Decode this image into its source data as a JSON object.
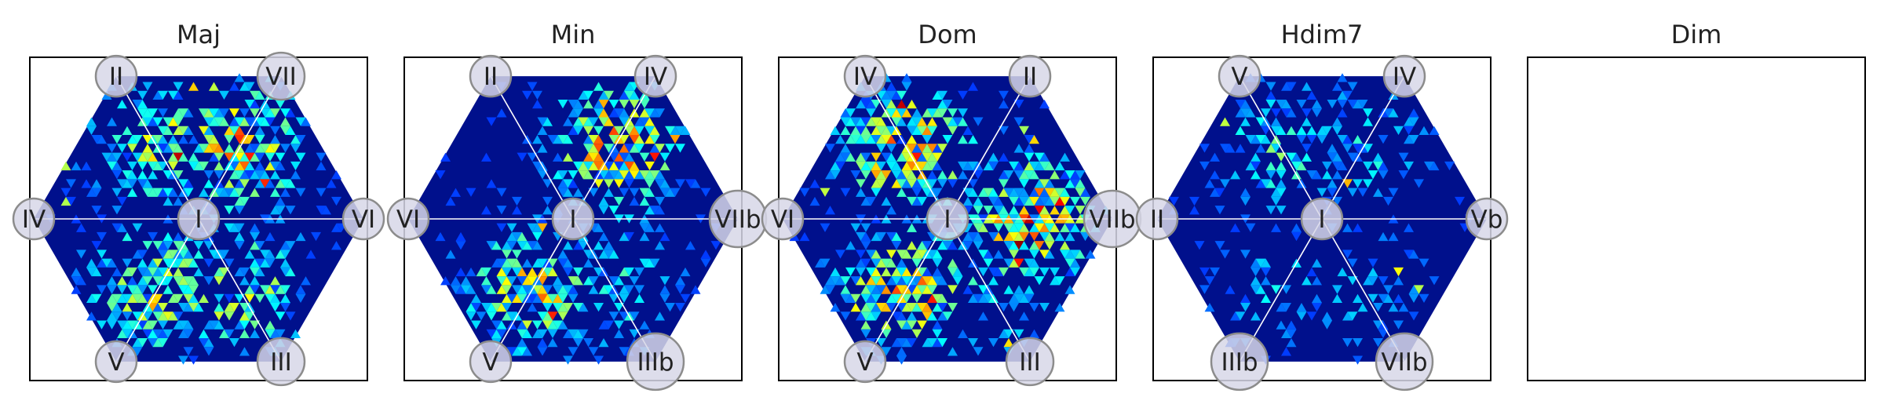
{
  "chart_data": [
    {
      "type": "heatmap",
      "title": "Maj",
      "vertex_labels": {
        "top_left": "II",
        "top_right": "VII",
        "left": "IV",
        "right": "VI",
        "bottom_left": "V",
        "bottom_right": "III"
      },
      "center_label": "I",
      "density_clusters": [
        {
          "sector": "upper-left",
          "density": 0.55
        },
        {
          "sector": "upper-right",
          "density": 0.75
        },
        {
          "sector": "lower-left",
          "density": 0.65
        },
        {
          "sector": "lower-right",
          "density": 0.6
        }
      ],
      "colormap": "jet",
      "grid": false
    },
    {
      "type": "heatmap",
      "title": "Min",
      "vertex_labels": {
        "top_left": "II",
        "top_right": "IV",
        "left": "VI",
        "right": "VIIb",
        "bottom_left": "V",
        "bottom_right": "IIIb"
      },
      "center_label": "I",
      "density_clusters": [
        {
          "sector": "upper-right",
          "density": 0.8
        },
        {
          "sector": "lower-left",
          "density": 0.7
        },
        {
          "sector": "lower-right",
          "density": 0.35
        }
      ],
      "colormap": "jet",
      "grid": false
    },
    {
      "type": "heatmap",
      "title": "Dom",
      "vertex_labels": {
        "top_left": "IV",
        "top_right": "II",
        "left": "VI",
        "right": "VIIb",
        "bottom_left": "V",
        "bottom_right": "III"
      },
      "center_label": "I",
      "density_clusters": [
        {
          "sector": "upper-left",
          "density": 0.8
        },
        {
          "sector": "right",
          "density": 0.85
        },
        {
          "sector": "lower-left",
          "density": 0.8
        },
        {
          "sector": "lower-right",
          "density": 0.4
        }
      ],
      "colormap": "jet",
      "grid": false
    },
    {
      "type": "heatmap",
      "title": "Hdim7",
      "vertex_labels": {
        "top_left": "V",
        "top_right": "IV",
        "left": "II",
        "right": "Vb",
        "bottom_left": "IIIb",
        "bottom_right": "VIIb"
      },
      "center_label": "I",
      "density_clusters": [
        {
          "sector": "upper-left",
          "density": 0.4
        },
        {
          "sector": "upper-right",
          "density": 0.3
        },
        {
          "sector": "lower-left",
          "density": 0.25
        },
        {
          "sector": "lower-right",
          "density": 0.2
        }
      ],
      "colormap": "jet",
      "grid": false
    },
    {
      "type": "heatmap",
      "title": "Dim",
      "empty": true
    }
  ]
}
